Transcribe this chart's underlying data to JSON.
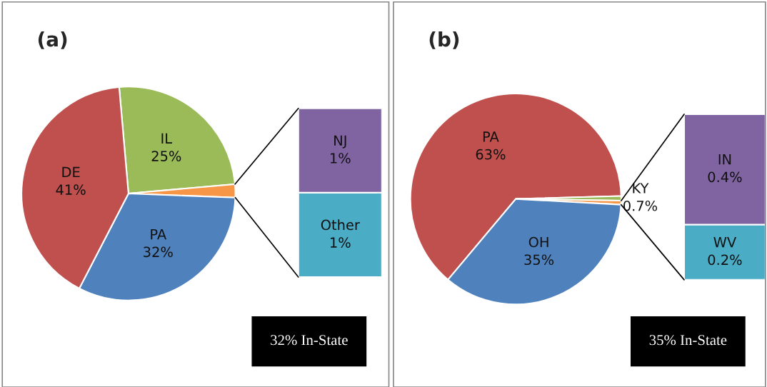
{
  "chart_data": [
    {
      "type": "pie",
      "title": "(a)",
      "categories": [
        "IL",
        null,
        "PA",
        "DE"
      ],
      "values": [
        25,
        2,
        32,
        41
      ],
      "colors": [
        "#9bbb59",
        "#f79646",
        "#4f81bd",
        "#c0504d"
      ],
      "value_labels": [
        "25%",
        null,
        "32%",
        "41%"
      ],
      "annotations": [
        "32% In-State"
      ]
    },
    {
      "type": "bar",
      "stacked": true,
      "categories": [
        null
      ],
      "series": [
        {
          "name": "Other",
          "color": "#4bacc6",
          "values": [
            1
          ],
          "value_labels": [
            "1%"
          ]
        },
        {
          "name": "NJ",
          "color": "#8064a2",
          "values": [
            1
          ],
          "value_labels": [
            "1%"
          ]
        }
      ]
    },
    {
      "type": "pie",
      "title": "(b)",
      "categories": [
        "PA",
        "KY",
        null,
        "OH"
      ],
      "values": [
        63,
        0.7,
        0.6,
        35
      ],
      "colors": [
        "#c0504d",
        "#9bbb59",
        "#f79646",
        "#4f81bd"
      ],
      "value_labels": [
        "63%",
        "0.7%",
        null,
        "35%"
      ],
      "annotations": [
        "35% In-State"
      ]
    },
    {
      "type": "bar",
      "stacked": true,
      "categories": [
        null
      ],
      "series": [
        {
          "name": "WV",
          "color": "#4bacc6",
          "values": [
            0.2
          ],
          "value_labels": [
            "0.2%"
          ]
        },
        {
          "name": "IN",
          "color": "#8064a2",
          "values": [
            0.4
          ],
          "value_labels": [
            "0.4%"
          ]
        }
      ]
    }
  ]
}
